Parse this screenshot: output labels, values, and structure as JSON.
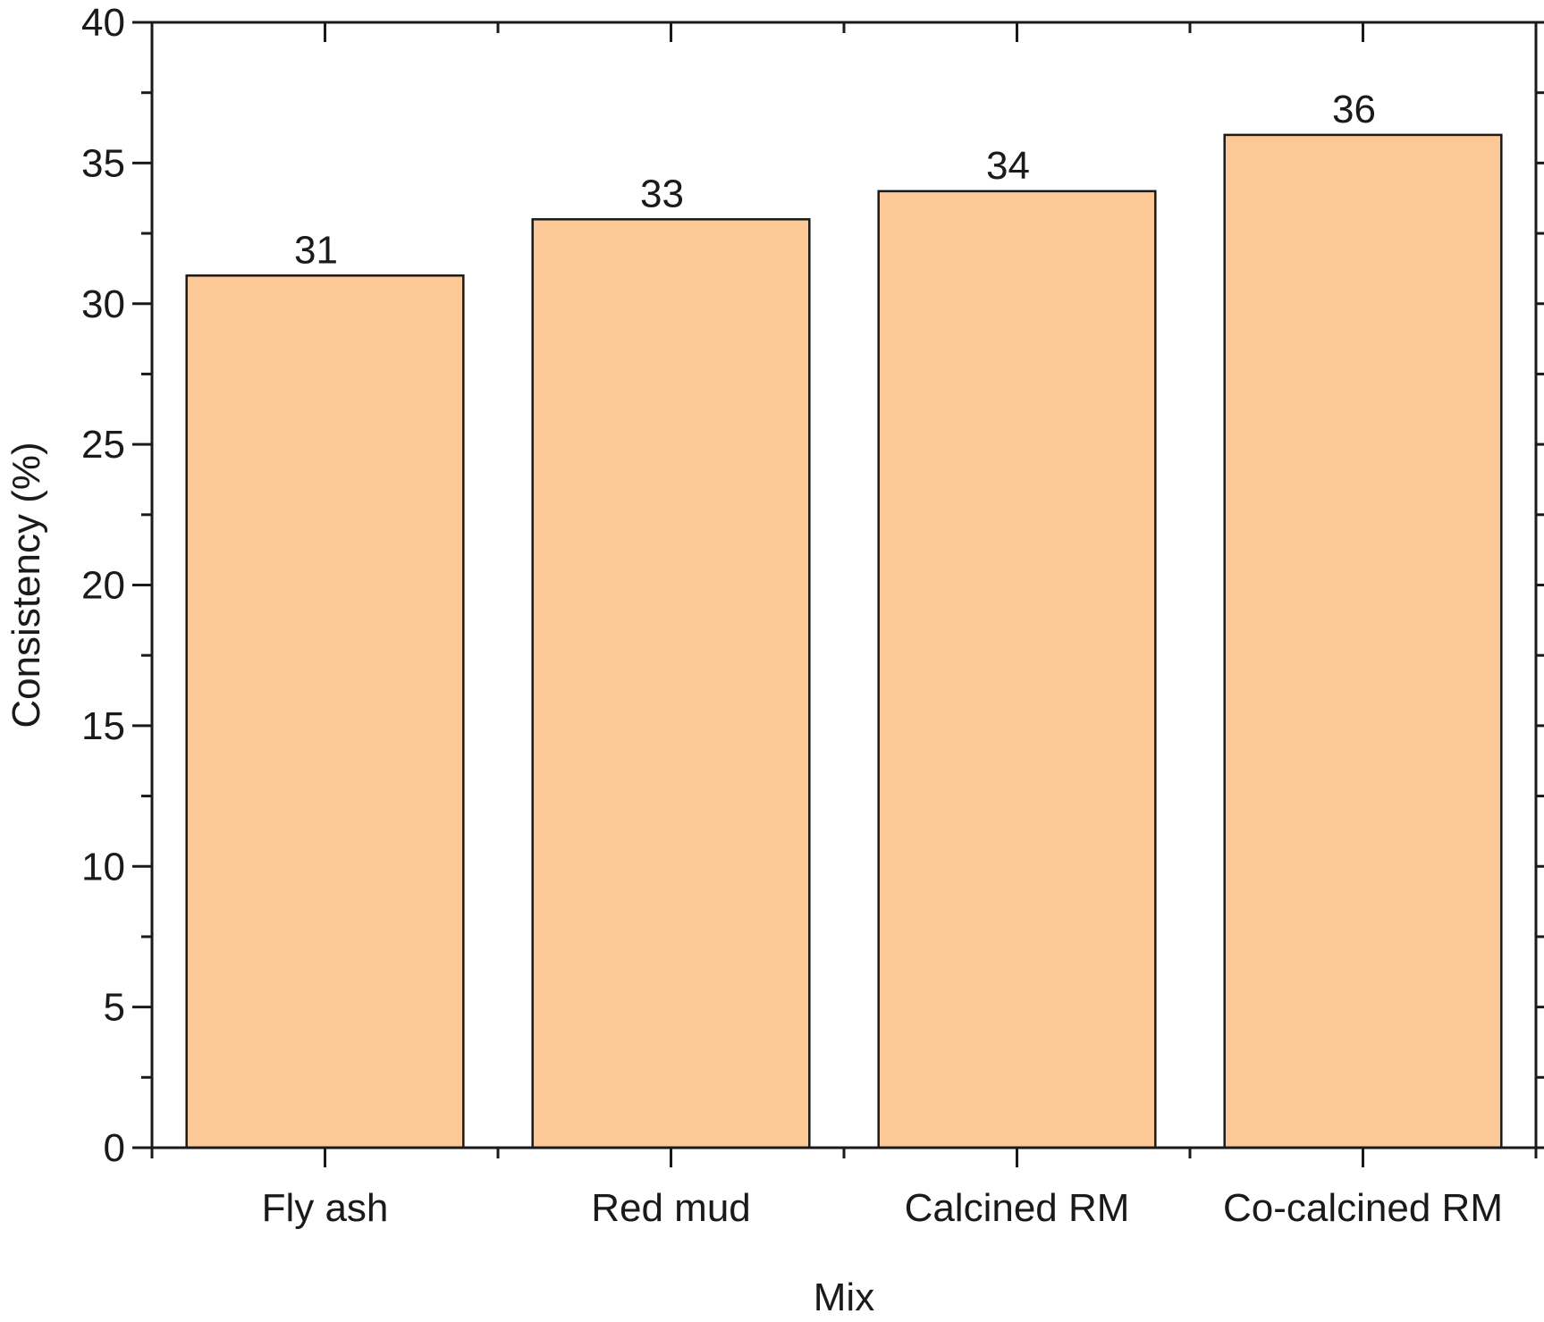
{
  "chart_data": {
    "type": "bar",
    "title": "",
    "xlabel": "Mix",
    "ylabel": "Consistency (%)",
    "categories": [
      "Fly ash",
      "Red mud",
      "Calcined RM",
      "Co-calcined RM"
    ],
    "values": [
      31,
      33,
      34,
      36
    ],
    "data_labels": [
      "31",
      "33",
      "34",
      "36"
    ],
    "ylim": [
      0,
      40
    ],
    "yticks": [
      0,
      5,
      10,
      15,
      20,
      25,
      30,
      35,
      40
    ],
    "grid": false,
    "bar_color": "#FBC896",
    "bar_edge_color": "#1a1a1a"
  }
}
